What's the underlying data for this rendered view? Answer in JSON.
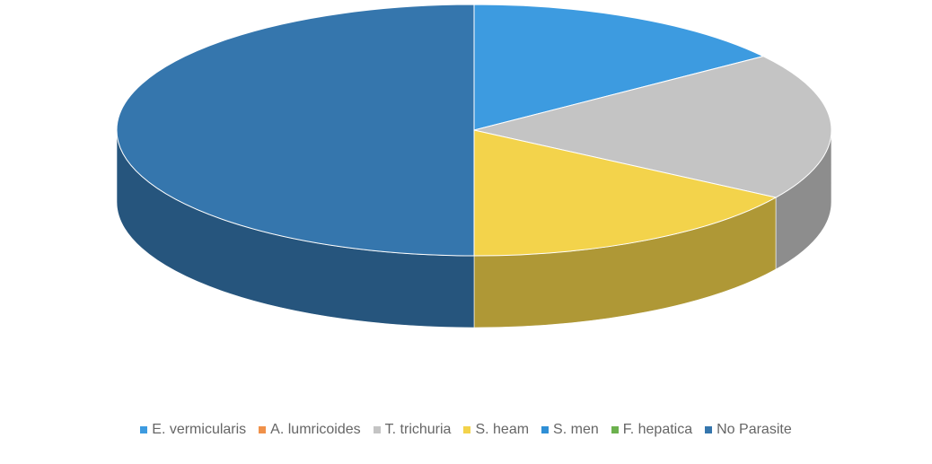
{
  "chart_data": {
    "type": "pie",
    "categories": [
      "E. vermicularis",
      "A. lumricoides",
      "T. trichuria",
      "S. heam",
      "S. men",
      "F. hepatica",
      "No Parasite"
    ],
    "values": [
      15,
      0,
      19,
      16,
      0,
      0,
      50
    ],
    "colors": [
      "#3d9be0",
      "#f0914a",
      "#c4c4c4",
      "#f3d34b",
      "#2f8fd6",
      "#6cb14e",
      "#3576ad"
    ],
    "legend": "bottom"
  }
}
